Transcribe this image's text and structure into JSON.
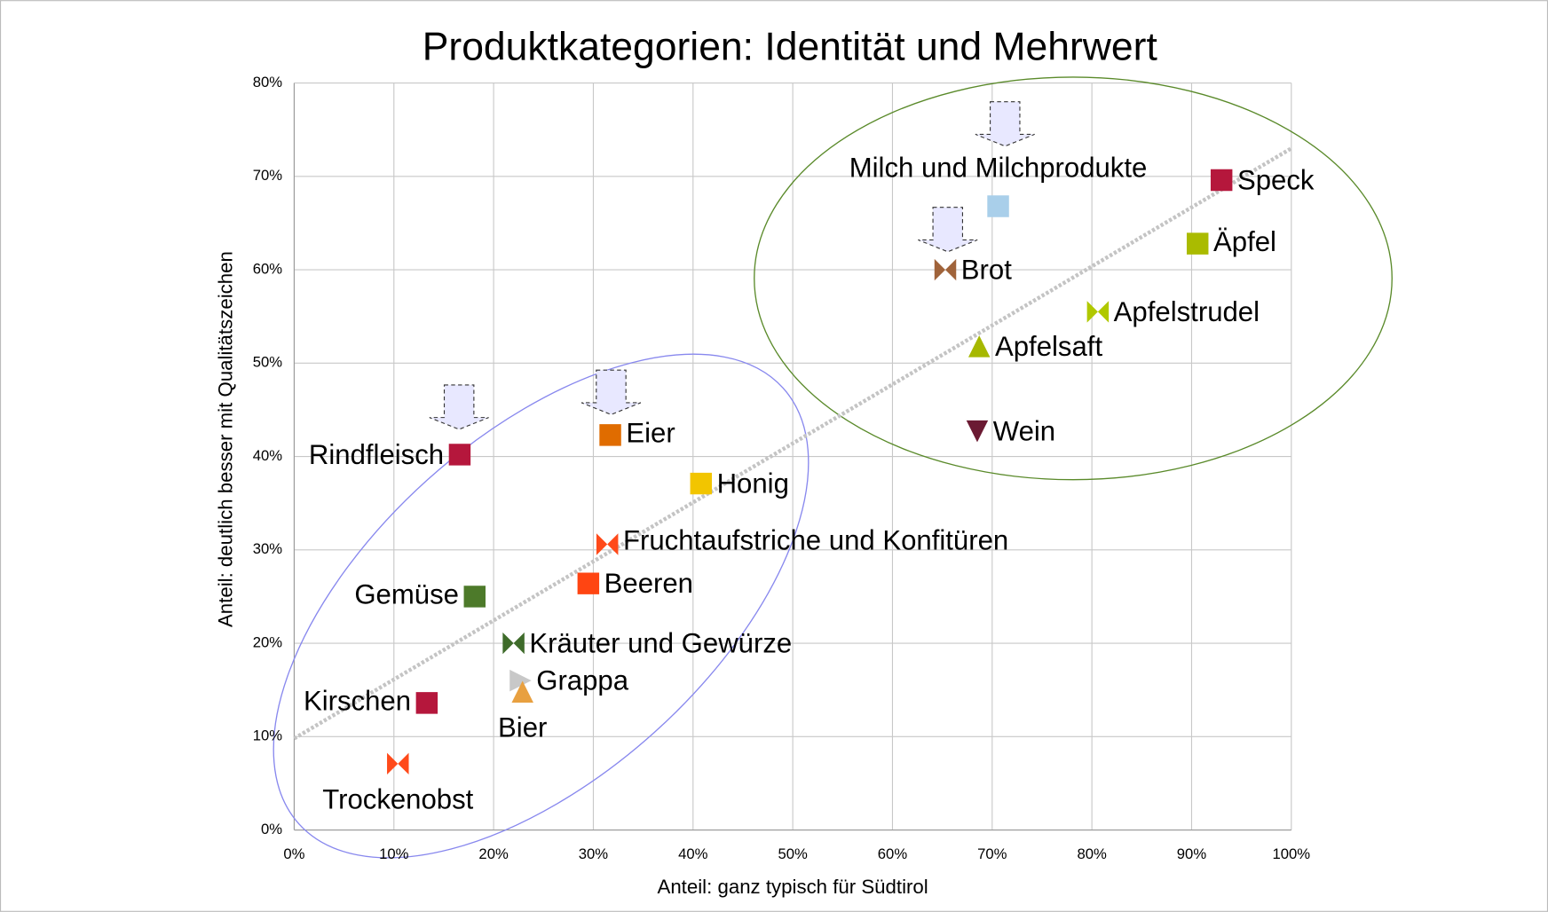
{
  "chart_data": {
    "type": "scatter",
    "title": "Produktkategorien: Identität und Mehrwert",
    "x_label": "Anteil: ganz typisch für Südtirol",
    "y_label": "Anteil: deutlich besser mit Qualitätszeichen",
    "xlim": [
      0,
      100
    ],
    "ylim": [
      0,
      80
    ],
    "grid": true,
    "xticks": [
      {
        "value": 0,
        "label": "0%"
      },
      {
        "value": 10,
        "label": "10%"
      },
      {
        "value": 20,
        "label": "20%"
      },
      {
        "value": 30,
        "label": "30%"
      },
      {
        "value": 40,
        "label": "40%"
      },
      {
        "value": 50,
        "label": "50%"
      },
      {
        "value": 60,
        "label": "60%"
      },
      {
        "value": 70,
        "label": "70%"
      },
      {
        "value": 80,
        "label": "80%"
      },
      {
        "value": 90,
        "label": "90%"
      },
      {
        "value": 100,
        "label": "100%"
      }
    ],
    "yticks": [
      {
        "value": 0,
        "label": "0%"
      },
      {
        "value": 10,
        "label": "10%"
      },
      {
        "value": 20,
        "label": "20%"
      },
      {
        "value": 30,
        "label": "30%"
      },
      {
        "value": 40,
        "label": "40%"
      },
      {
        "value": 50,
        "label": "50%"
      },
      {
        "value": 60,
        "label": "60%"
      },
      {
        "value": 70,
        "label": "70%"
      },
      {
        "value": 80,
        "label": "80%"
      }
    ],
    "trendline": {
      "x": [
        0,
        100
      ],
      "y": [
        9.8,
        73
      ],
      "color": "#c4c4c4"
    },
    "points": [
      {
        "name": "Speck",
        "x": 93,
        "y": 69.6,
        "color": "#b5173c",
        "marker": "square"
      },
      {
        "name": "Milch und Milchprodukte",
        "x": 70.6,
        "y": 66.8,
        "color": "#a9cfea",
        "marker": "square"
      },
      {
        "name": "Äpfel",
        "x": 90.6,
        "y": 62.8,
        "color": "#aabb00",
        "marker": "square"
      },
      {
        "name": "Brot",
        "x": 65.3,
        "y": 60,
        "color": "#a0633a",
        "marker": "bowtie"
      },
      {
        "name": "Apfelstrudel",
        "x": 80.6,
        "y": 55.5,
        "color": "#b0c800",
        "marker": "bowtie"
      },
      {
        "name": "Apfelsaft",
        "x": 68.7,
        "y": 51.8,
        "color": "#a6b800",
        "marker": "triangle-up"
      },
      {
        "name": "Wein",
        "x": 68.5,
        "y": 42.7,
        "color": "#6b1a33",
        "marker": "triangle-down"
      },
      {
        "name": "Eier",
        "x": 31.7,
        "y": 42.3,
        "color": "#e06c00",
        "marker": "square"
      },
      {
        "name": "Rindfleisch",
        "x": 16.6,
        "y": 40.2,
        "color": "#b5173c",
        "marker": "square"
      },
      {
        "name": "Honig",
        "x": 40.8,
        "y": 37.1,
        "color": "#f2c500",
        "marker": "square"
      },
      {
        "name": "Fruchtaufstriche und Konfitüren",
        "x": 31.4,
        "y": 30.6,
        "color": "#ff4a1a",
        "marker": "bowtie"
      },
      {
        "name": "Beeren",
        "x": 29.5,
        "y": 26.4,
        "color": "#ff4512",
        "marker": "square"
      },
      {
        "name": "Gemüse",
        "x": 18.1,
        "y": 25,
        "color": "#4d7a2a",
        "marker": "square"
      },
      {
        "name": "Kräuter und Gewürze",
        "x": 22,
        "y": 20,
        "color": "#3e6b2a",
        "marker": "bowtie"
      },
      {
        "name": "Grappa",
        "x": 22.7,
        "y": 16,
        "color": "#c8c8c8",
        "marker": "triangle-right"
      },
      {
        "name": "Bier",
        "x": 22.9,
        "y": 14.8,
        "color": "#e8a040",
        "marker": "triangle-up"
      },
      {
        "name": "Kirschen",
        "x": 13.3,
        "y": 13.6,
        "color": "#b5173c",
        "marker": "square"
      },
      {
        "name": "Trockenobst",
        "x": 10.4,
        "y": 7.1,
        "color": "#ff4a1a",
        "marker": "bowtie"
      }
    ]
  }
}
